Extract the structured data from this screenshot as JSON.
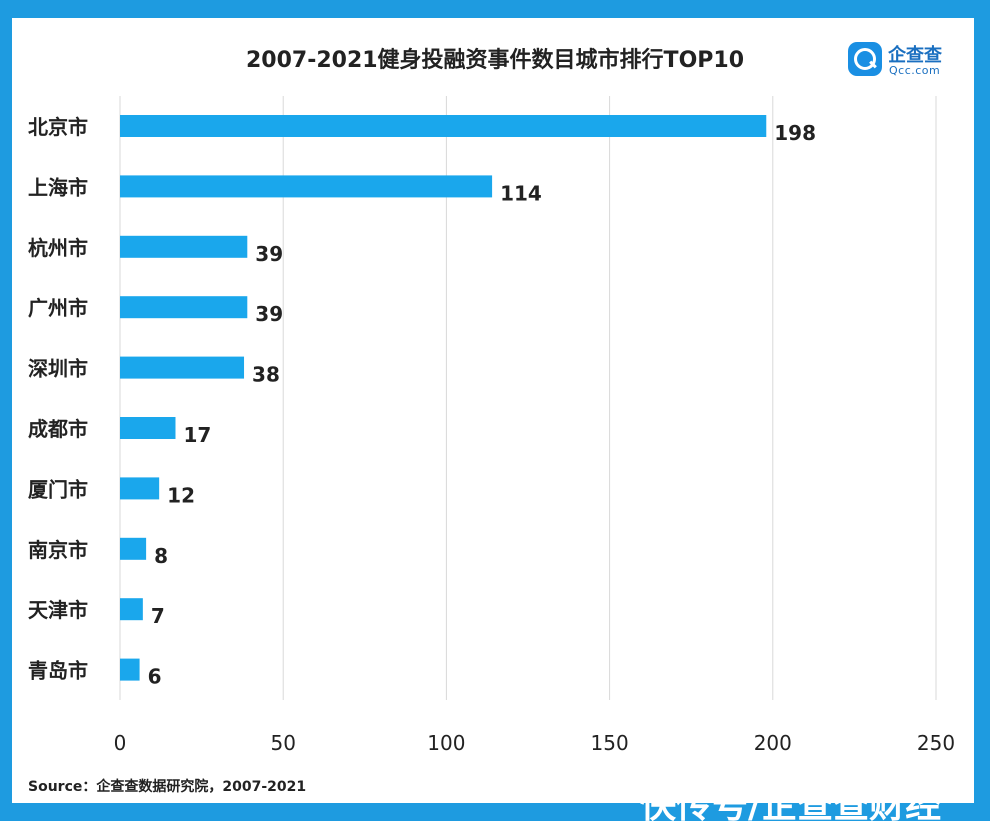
{
  "chart_data": {
    "type": "bar",
    "orientation": "horizontal",
    "title": "2007-2021健身投融资事件数目城市排行TOP10",
    "categories": [
      "北京市",
      "上海市",
      "杭州市",
      "广州市",
      "深圳市",
      "成都市",
      "厦门市",
      "南京市",
      "天津市",
      "青岛市"
    ],
    "values": [
      198,
      114,
      39,
      39,
      38,
      17,
      12,
      8,
      7,
      6
    ],
    "xlim": [
      0,
      250
    ],
    "xticks": [
      0,
      50,
      100,
      150,
      200,
      250
    ],
    "grid": "vertical",
    "bar_color": "#1aa7ec"
  },
  "logo": {
    "name": "企查查",
    "domain": "Qcc.com"
  },
  "source": "Source：企查查数据研究院，2007-2021",
  "corner_text": "快传号/企查查财经"
}
